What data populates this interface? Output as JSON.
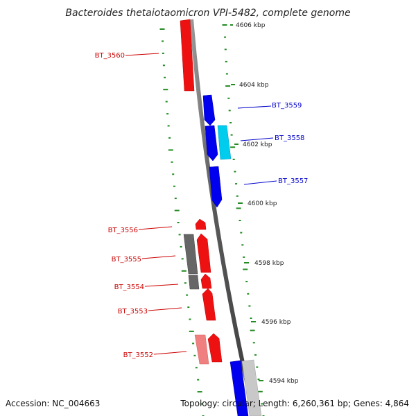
{
  "title": "Bacteroides thetaiotaomicron VPI-5482, complete genome",
  "accession": "Accession: NC_004663",
  "summary": "Topology: circular; Length: 6,260,361 bp; Genes: 4,864",
  "colors": {
    "forward": "#ff0000",
    "forward_light": "#f08080",
    "reverse": "#0000ee",
    "reverse_light": "#00ccee",
    "gray": "#666666",
    "gray_light": "#c8c8c8",
    "tick": "#228B22",
    "forward_label": "#cc0000",
    "reverse_label": "#0000cc"
  },
  "kbp_labels": [
    "4606 kbp",
    "4604 kbp",
    "4602 kbp",
    "4600 kbp",
    "4598 kbp",
    "4596 kbp",
    "4594 kbp"
  ],
  "genes": [
    {
      "id": "BT_3560",
      "strand": "forward"
    },
    {
      "id": "BT_3559",
      "strand": "reverse"
    },
    {
      "id": "BT_3558",
      "strand": "reverse"
    },
    {
      "id": "BT_3557",
      "strand": "reverse"
    },
    {
      "id": "BT_3556",
      "strand": "forward"
    },
    {
      "id": "BT_3555",
      "strand": "forward"
    },
    {
      "id": "BT_3554",
      "strand": "forward"
    },
    {
      "id": "BT_3553",
      "strand": "forward"
    },
    {
      "id": "BT_3552",
      "strand": "forward"
    }
  ]
}
